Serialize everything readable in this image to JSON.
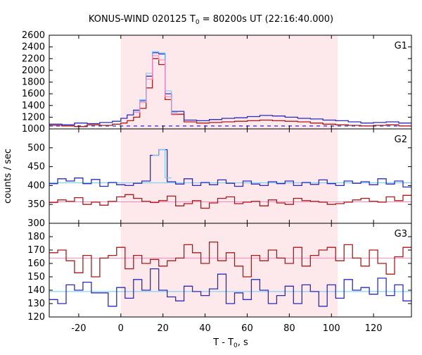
{
  "figure": {
    "title": "KONUS-WIND 020125 T",
    "title_sub": "0",
    "title_tail": " = 80200s UT (22:16:40.000)",
    "xlabel": "T - T",
    "xlabel_sub": "0",
    "xlabel_tail": ", s",
    "ylabel": "counts / sec"
  },
  "colors": {
    "shade": "#fde8ec",
    "blue": "#2b2bc4",
    "red": "#b01818",
    "cyan": "#66ccff",
    "pink": "#ff88bb",
    "axis": "#000000"
  },
  "chart_data": [
    {
      "type": "line",
      "panel": "G1",
      "name": "G1",
      "shaded_interval": [
        0,
        103
      ],
      "xlim": [
        -34,
        138
      ],
      "ylim": [
        1000,
        2600
      ],
      "x_ticks": [
        -20,
        0,
        20,
        40,
        60,
        80,
        100,
        120
      ],
      "x_tick_labels": [],
      "y_ticks": [
        1000,
        1200,
        1400,
        1600,
        1800,
        2000,
        2200,
        2400,
        2600
      ],
      "y_tick_labels": [
        "1000",
        "1200",
        "1400",
        "1600",
        "1800",
        "2000",
        "2200",
        "2400",
        "2600"
      ],
      "baseline": 1050,
      "blue_step": {
        "x": [
          -34,
          -28,
          -22,
          -16,
          -10,
          -4,
          0,
          3,
          6,
          9,
          12,
          15,
          18,
          21,
          24,
          30,
          36,
          42,
          48,
          54,
          60,
          66,
          72,
          78,
          84,
          90,
          96,
          102,
          108,
          114,
          120,
          126,
          132
        ],
        "y": [
          1080,
          1070,
          1100,
          1090,
          1110,
          1130,
          1180,
          1240,
          1320,
          1480,
          1900,
          2300,
          2280,
          1600,
          1300,
          1150,
          1140,
          1160,
          1180,
          1190,
          1210,
          1230,
          1220,
          1200,
          1180,
          1170,
          1150,
          1140,
          1120,
          1100,
          1110,
          1120,
          1100
        ]
      },
      "red_step": {
        "x": [
          -34,
          -28,
          -22,
          -16,
          -10,
          -4,
          0,
          3,
          6,
          9,
          12,
          15,
          18,
          21,
          24,
          30,
          36,
          42,
          48,
          54,
          60,
          66,
          72,
          78,
          84,
          90,
          96,
          102,
          108,
          114,
          120,
          126,
          132
        ],
        "y": [
          1060,
          1050,
          1040,
          1070,
          1060,
          1080,
          1100,
          1140,
          1200,
          1350,
          1700,
          2200,
          2100,
          1500,
          1250,
          1120,
          1100,
          1110,
          1120,
          1130,
          1140,
          1150,
          1140,
          1130,
          1120,
          1100,
          1080,
          1070,
          1060,
          1050,
          1060,
          1070,
          1050
        ]
      }
    },
    {
      "type": "line",
      "panel": "G2",
      "name": "G2",
      "shaded_interval": [
        0,
        103
      ],
      "xlim": [
        -34,
        138
      ],
      "ylim": [
        300,
        550
      ],
      "x_ticks": [
        -20,
        0,
        20,
        40,
        60,
        80,
        100,
        120
      ],
      "x_tick_labels": [],
      "y_ticks": [
        300,
        350,
        400,
        450,
        500
      ],
      "y_tick_labels": [
        "300",
        "350",
        "400",
        "450",
        "500"
      ],
      "baseline_blue": 407,
      "baseline_red": 357,
      "peak": {
        "x": [
          15,
          18,
          21
        ],
        "y": [
          480,
          495,
          420
        ]
      },
      "blue_step": {
        "x": [
          -34,
          -30,
          -26,
          -22,
          -18,
          -14,
          -10,
          -6,
          -2,
          2,
          6,
          10,
          14,
          18,
          22,
          26,
          30,
          34,
          38,
          42,
          46,
          50,
          54,
          58,
          62,
          66,
          70,
          74,
          78,
          82,
          86,
          90,
          94,
          98,
          102,
          106,
          110,
          114,
          118,
          122,
          126,
          130,
          134
        ],
        "y": [
          405,
          418,
          412,
          420,
          405,
          416,
          398,
          408,
          402,
          400,
          406,
          412,
          480,
          495,
          410,
          404,
          418,
          400,
          408,
          402,
          415,
          406,
          398,
          412,
          404,
          400,
          410,
          405,
          412,
          400,
          408,
          403,
          415,
          405,
          400,
          412,
          406,
          410,
          402,
          418,
          404,
          412,
          396
        ]
      },
      "red_step": {
        "x": [
          -34,
          -30,
          -26,
          -22,
          -18,
          -14,
          -10,
          -6,
          -2,
          2,
          6,
          10,
          14,
          18,
          22,
          26,
          30,
          34,
          38,
          42,
          46,
          50,
          54,
          58,
          62,
          66,
          70,
          74,
          78,
          82,
          86,
          90,
          94,
          98,
          102,
          106,
          110,
          114,
          118,
          122,
          126,
          130,
          134
        ],
        "y": [
          355,
          362,
          358,
          368,
          350,
          356,
          348,
          358,
          370,
          376,
          366,
          358,
          355,
          360,
          372,
          346,
          352,
          360,
          340,
          354,
          366,
          370,
          352,
          356,
          358,
          346,
          362,
          354,
          350,
          366,
          360,
          358,
          356,
          350,
          352,
          356,
          362,
          366,
          358,
          356,
          370,
          360,
          374
        ]
      }
    },
    {
      "type": "line",
      "panel": "G3",
      "name": "G3",
      "shaded_interval": [
        0,
        103
      ],
      "xlim": [
        -34,
        138
      ],
      "ylim": [
        120,
        190
      ],
      "x_ticks": [
        -20,
        0,
        20,
        40,
        60,
        80,
        100,
        120
      ],
      "x_tick_labels": [
        "-20",
        "0",
        "20",
        "40",
        "60",
        "80",
        "100",
        "120"
      ],
      "y_ticks": [
        120,
        130,
        140,
        150,
        160,
        170,
        180
      ],
      "y_tick_labels": [
        "120",
        "130",
        "140",
        "150",
        "160",
        "170",
        "180"
      ],
      "baseline_blue": 139,
      "baseline_red": 164,
      "blue_step": {
        "x": [
          -34,
          -30,
          -26,
          -22,
          -18,
          -14,
          -10,
          -6,
          -2,
          2,
          6,
          10,
          14,
          18,
          22,
          26,
          30,
          34,
          38,
          42,
          46,
          50,
          54,
          58,
          62,
          66,
          70,
          74,
          78,
          82,
          86,
          90,
          94,
          98,
          102,
          106,
          110,
          114,
          118,
          122,
          126,
          130,
          134
        ],
        "y": [
          133,
          130,
          144,
          140,
          146,
          138,
          138,
          128,
          142,
          134,
          148,
          140,
          156,
          140,
          135,
          132,
          143,
          139,
          136,
          141,
          152,
          130,
          138,
          133,
          148,
          140,
          130,
          136,
          143,
          130,
          144,
          139,
          128,
          144,
          134,
          148,
          140,
          142,
          137,
          149,
          136,
          144,
          132
        ]
      },
      "red_step": {
        "x": [
          -34,
          -30,
          -26,
          -22,
          -18,
          -14,
          -10,
          -6,
          -2,
          2,
          6,
          10,
          14,
          18,
          22,
          26,
          30,
          34,
          38,
          42,
          46,
          50,
          54,
          58,
          62,
          66,
          70,
          74,
          78,
          82,
          86,
          90,
          94,
          98,
          102,
          106,
          110,
          114,
          118,
          122,
          126,
          130,
          134
        ],
        "y": [
          168,
          170,
          162,
          153,
          166,
          150,
          164,
          166,
          172,
          156,
          166,
          160,
          163,
          158,
          162,
          164,
          174,
          168,
          160,
          176,
          162,
          168,
          158,
          150,
          166,
          162,
          170,
          164,
          160,
          172,
          158,
          166,
          170,
          172,
          162,
          174,
          164,
          158,
          170,
          160,
          152,
          165,
          172
        ]
      }
    }
  ]
}
